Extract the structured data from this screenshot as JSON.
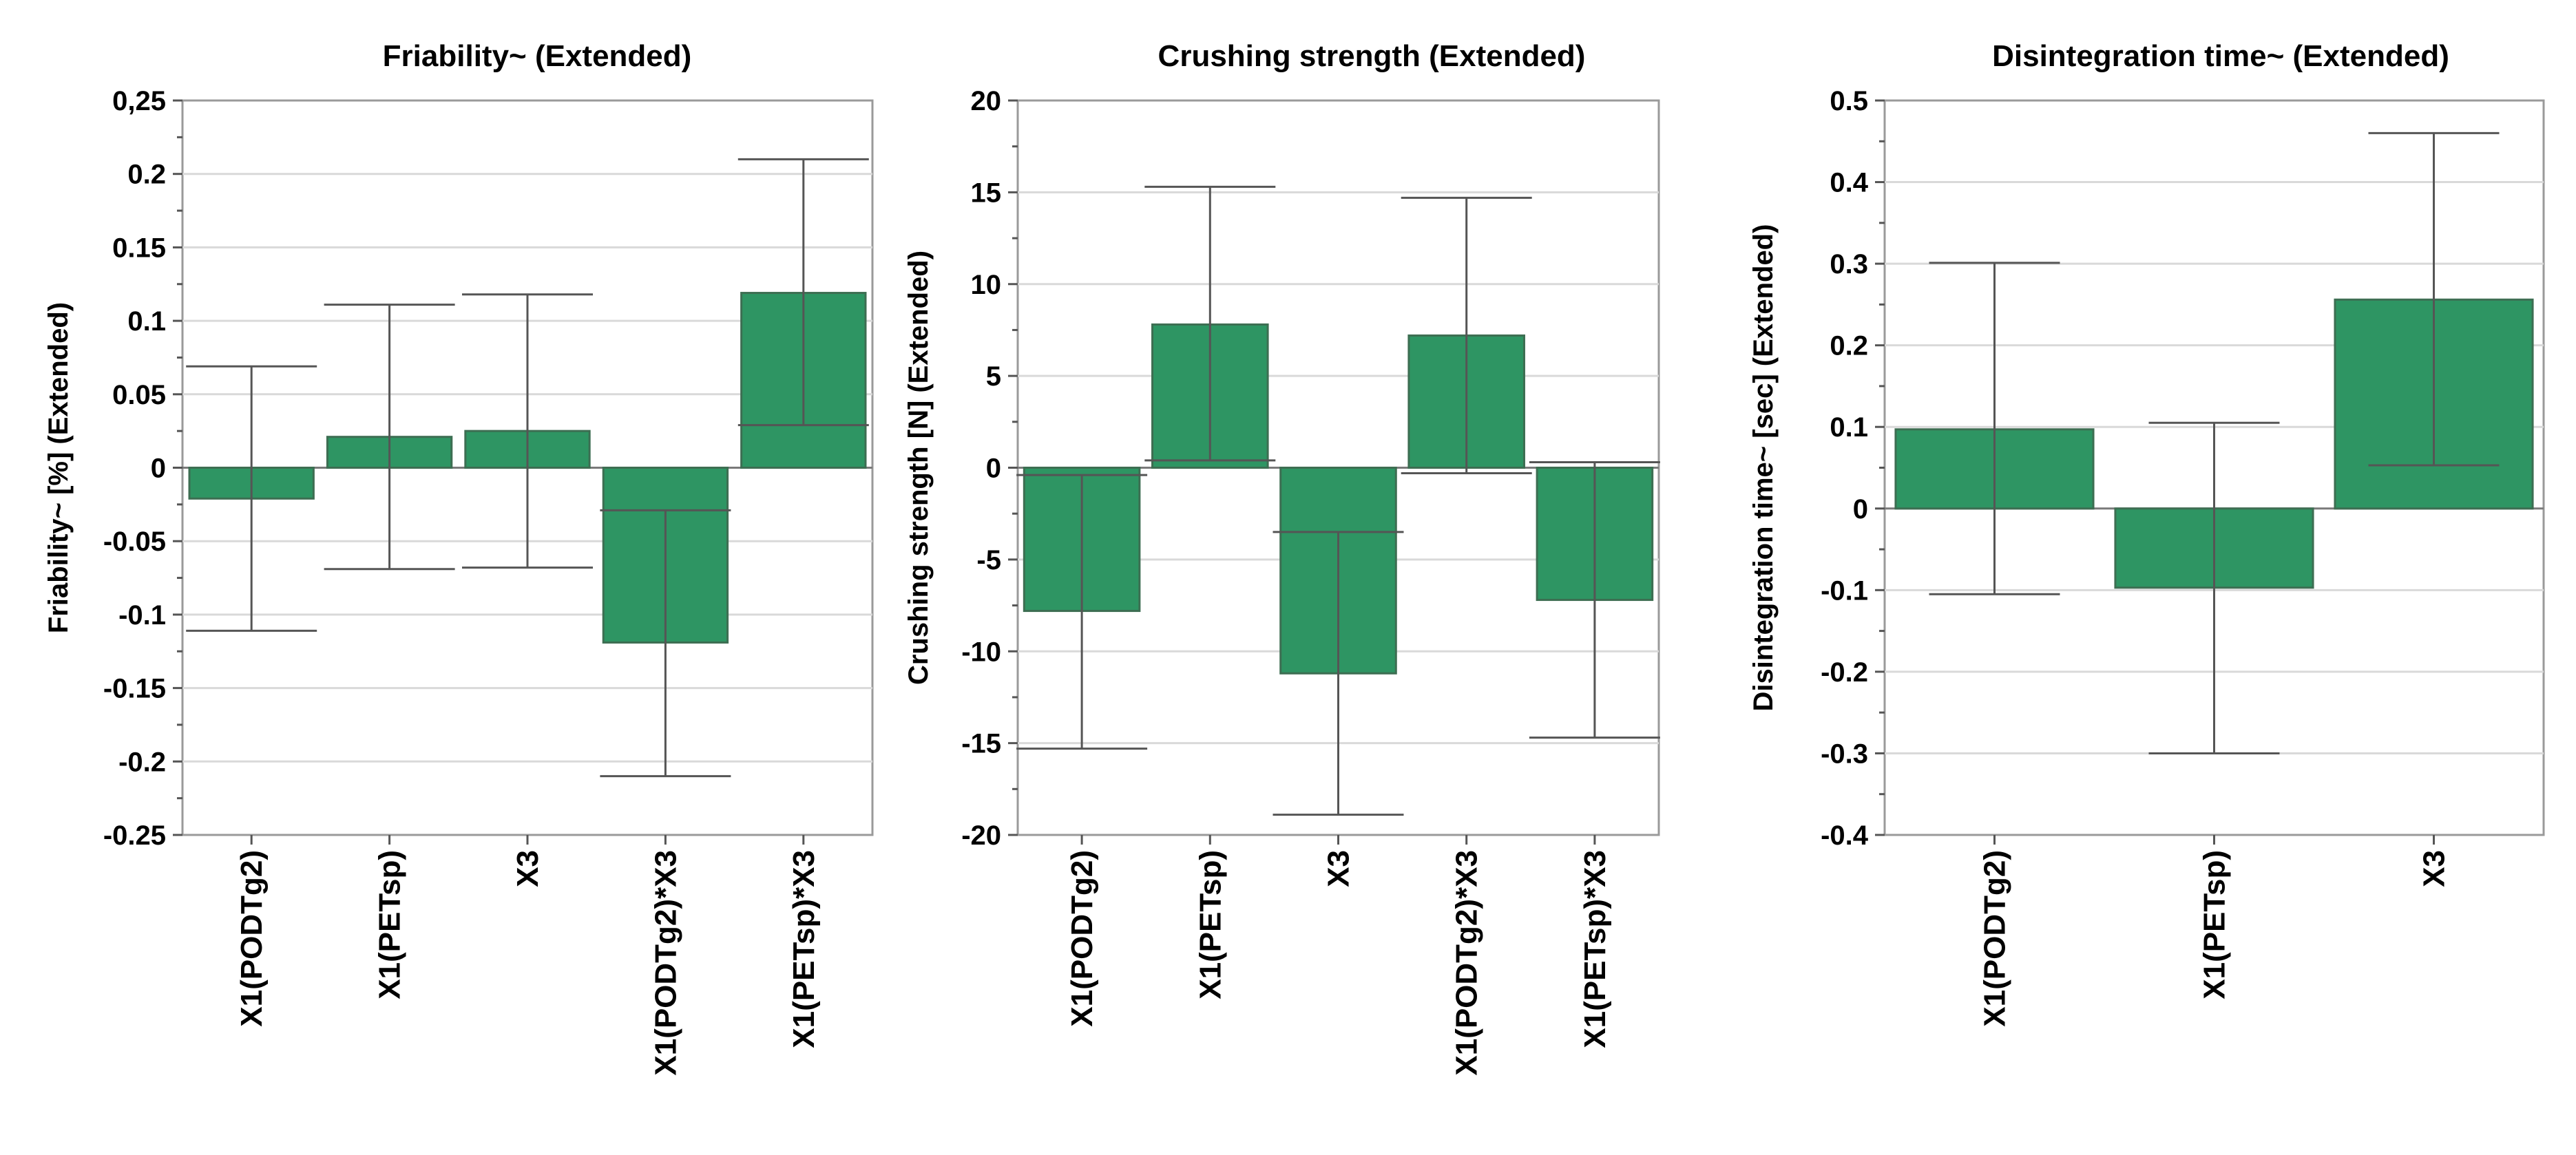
{
  "colors": {
    "bar": "#2e9563"
  },
  "chart_data": [
    {
      "type": "bar",
      "title": "Friability~ (Extended)",
      "xlabel": "",
      "ylabel": "Friability~ [%] (Extended)",
      "ylim": [
        -0.25,
        0.25
      ],
      "yticks": [
        0.25,
        0.2,
        0.15,
        0.1,
        0.05,
        0,
        -0.05,
        -0.1,
        -0.15,
        -0.2,
        -0.25
      ],
      "ytick_labels": [
        "0,25",
        "0.2",
        "0.15",
        "0.1",
        "0.05",
        "0",
        "-0.05",
        "-0.1",
        "-0.15",
        "-0.2",
        "-0.25"
      ],
      "grid": true,
      "categories": [
        "X1(PODTg2)",
        "X1(PETsp)",
        "X3",
        "X1(PODTg2)*X3",
        "X1(PETsp)*X3"
      ],
      "values": [
        -0.021,
        0.021,
        0.025,
        -0.119,
        0.119
      ],
      "error_low": [
        -0.111,
        -0.069,
        -0.068,
        -0.21,
        0.029
      ],
      "error_high": [
        0.069,
        0.111,
        0.118,
        -0.029,
        0.21
      ]
    },
    {
      "type": "bar",
      "title": "Crushing strength (Extended)",
      "xlabel": "",
      "ylabel": "Crushing strength [N] (Extended)",
      "ylim": [
        -20,
        20
      ],
      "yticks": [
        20,
        15,
        10,
        5,
        0,
        -5,
        -10,
        -15,
        -20
      ],
      "ytick_labels": [
        "20",
        "15",
        "10",
        "5",
        "0",
        "-5",
        "-10",
        "-15",
        "-20"
      ],
      "grid": true,
      "categories": [
        "X1(PODTg2)",
        "X1(PETsp)",
        "X3",
        "X1(PODTg2)*X3",
        "X1(PETsp)*X3"
      ],
      "values": [
        -7.8,
        7.8,
        -11.2,
        7.2,
        -7.2
      ],
      "error_low": [
        -15.3,
        0.4,
        -18.9,
        -0.3,
        -14.7
      ],
      "error_high": [
        -0.4,
        15.3,
        -3.5,
        14.7,
        0.3
      ]
    },
    {
      "type": "bar",
      "title": "Disintegration time~ (Extended)",
      "xlabel": "",
      "ylabel": "Disintegration time~ [sec] (Extended)",
      "ylim": [
        -0.4,
        0.5
      ],
      "yticks": [
        0.5,
        0.4,
        0.3,
        0.2,
        0.1,
        0,
        -0.1,
        -0.2,
        -0.3,
        -0.4
      ],
      "ytick_labels": [
        "0.5",
        "0.4",
        "0.3",
        "0.2",
        "0.1",
        "0",
        "-0.1",
        "-0.2",
        "-0.3",
        "-0.4"
      ],
      "grid": true,
      "categories": [
        "X1(PODTg2)",
        "X1(PETsp)",
        "X3"
      ],
      "values": [
        0.097,
        -0.097,
        0.256
      ],
      "error_low": [
        -0.105,
        -0.3,
        0.053
      ],
      "error_high": [
        0.301,
        0.105,
        0.46
      ]
    }
  ]
}
